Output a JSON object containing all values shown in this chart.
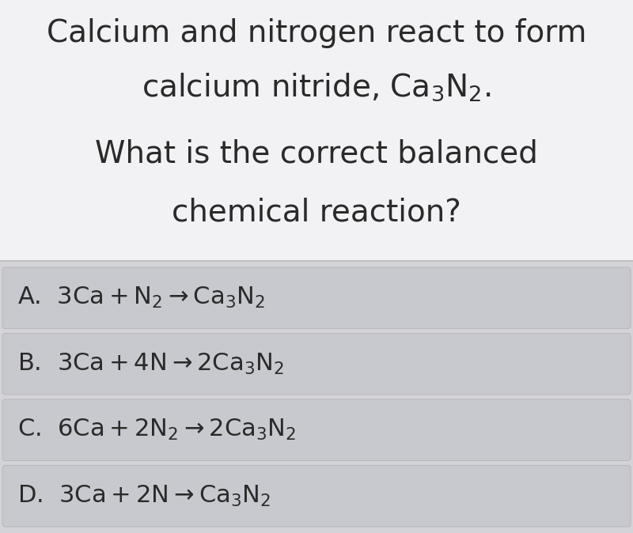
{
  "bg_top": "#f0f0f0",
  "bg_options_area": "#d4d4d8",
  "option_box_color": "#c8c9ce",
  "option_box_edge": "#b8b9be",
  "separator_color": "#c0c0c0",
  "text_color": "#2a2a2a",
  "title_lines": [
    "Calcium and nitrogen react to form",
    "calcium nitride, Ca$_3$N$_2$.",
    "What is the correct balanced",
    "chemical reaction?"
  ],
  "options": [
    "A.  $\\mathregular{3Ca + N_2 \\rightarrow Ca_3N_2}$",
    "B.  $\\mathregular{3Ca + 4N \\rightarrow 2Ca_3N_2}$",
    "C.  $\\mathregular{6Ca + 2N_2 \\rightarrow 2Ca_3N_2}$",
    "D.  $\\mathregular{3Ca + 2N \\rightarrow Ca_3N_2}$"
  ],
  "title_fontsize": 28,
  "option_fontsize": 22,
  "fig_width": 8.0,
  "fig_height": 6.74,
  "dpi": 100
}
